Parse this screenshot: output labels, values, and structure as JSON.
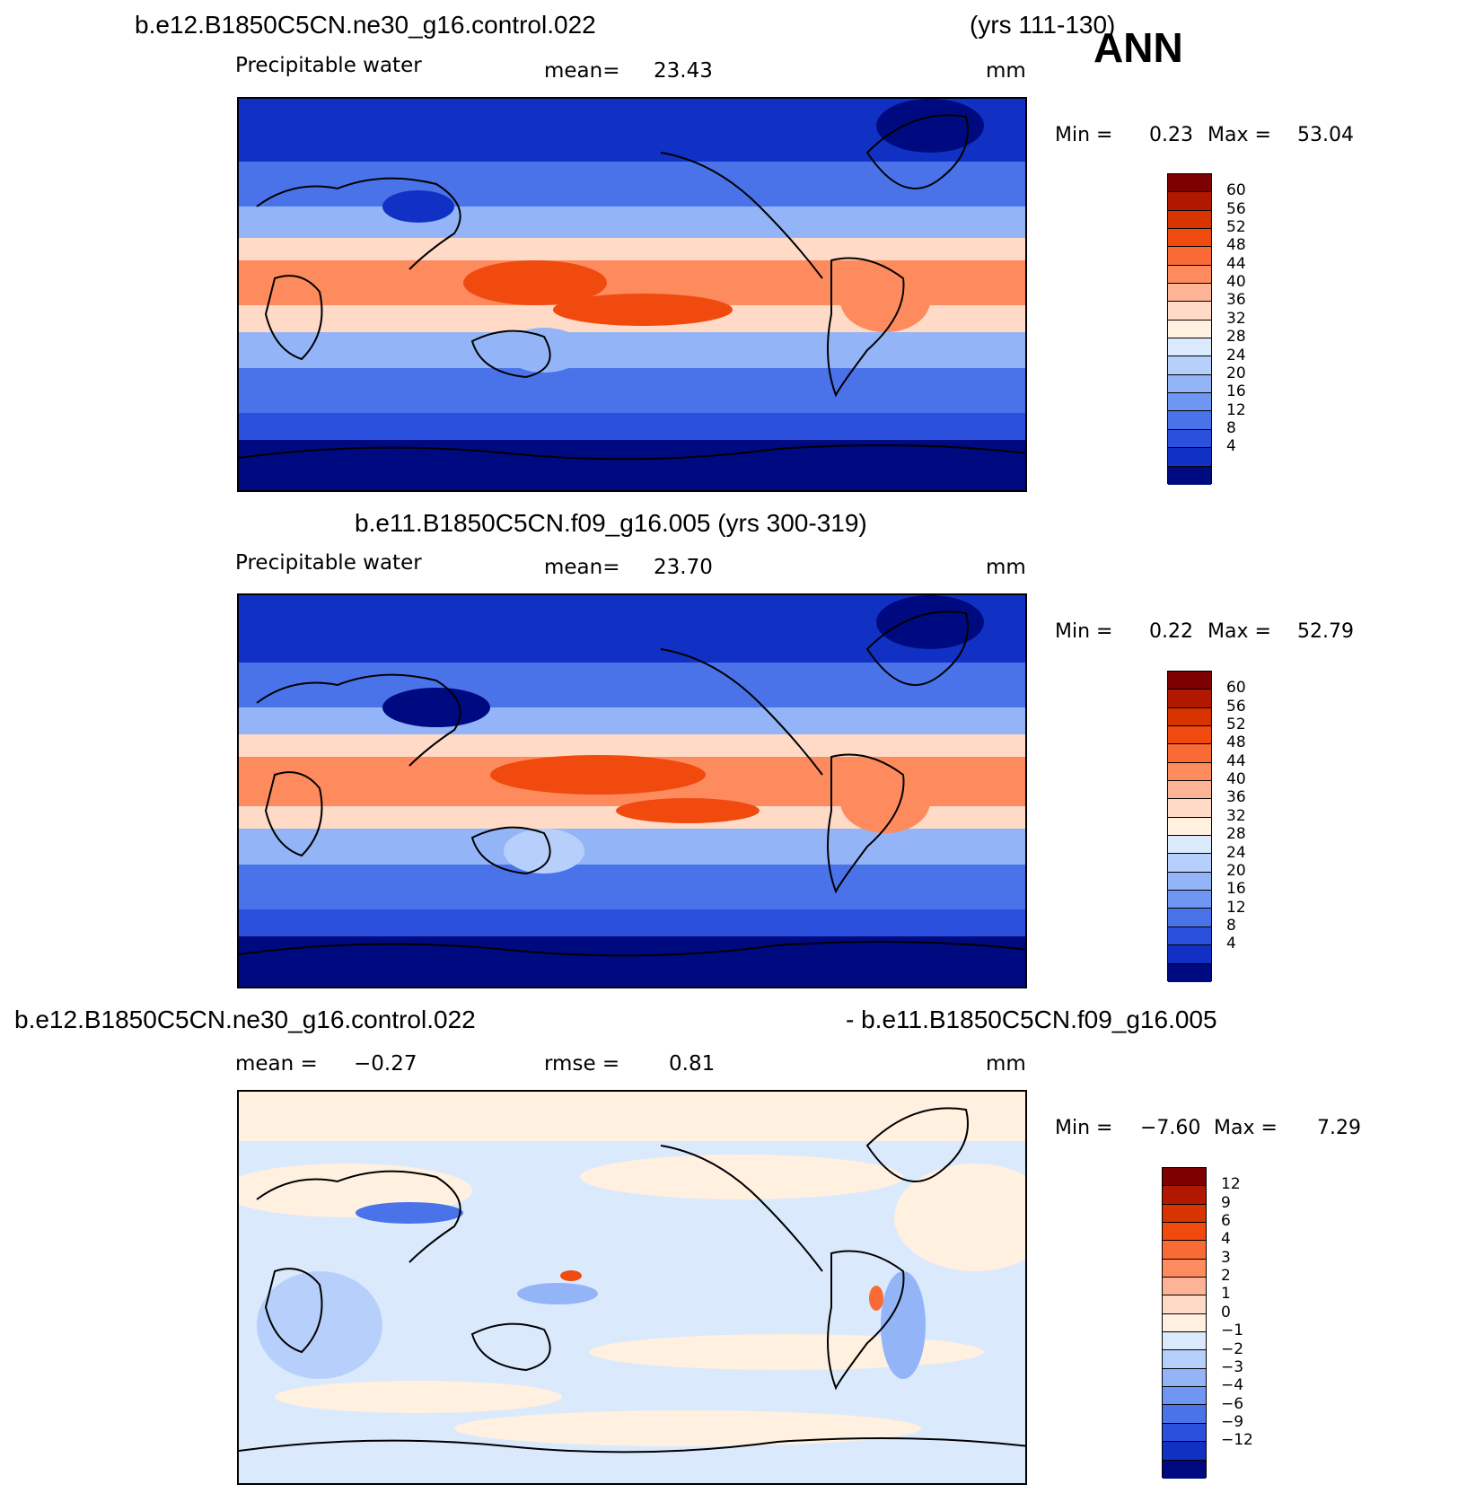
{
  "header": {
    "case_title": "b.e12.B1850C5CN.ne30_g16.control.022",
    "years": "(yrs 111-130)",
    "season": "ANN"
  },
  "panels": [
    {
      "title": "",
      "variable": "Precipitable water",
      "stat_label": "mean=",
      "stat_value": "23.43",
      "units": "mm",
      "min_label": "Min =",
      "min_value": "0.23",
      "max_label": "Max =",
      "max_value": "53.04"
    },
    {
      "title": "b.e11.B1850C5CN.f09_g16.005 (yrs 300-319)",
      "variable": "Precipitable water",
      "stat_label": "mean=",
      "stat_value": "23.70",
      "units": "mm",
      "min_label": "Min =",
      "min_value": "0.22",
      "max_label": "Max =",
      "max_value": "52.79"
    },
    {
      "title_left": "b.e12.B1850C5CN.ne30_g16.control.022",
      "title_right": "- b.e11.B1850C5CN.f09_g16.005",
      "stat_label": "mean =",
      "stat_value": "−0.27",
      "rmse_label": "rmse =",
      "rmse_value": "0.81",
      "units": "mm",
      "min_label": "Min =",
      "min_value": "−7.60",
      "max_label": "Max =",
      "max_value": "7.29"
    }
  ],
  "colorbars": {
    "field": {
      "ticks": [
        "60",
        "56",
        "52",
        "48",
        "44",
        "40",
        "36",
        "32",
        "28",
        "24",
        "20",
        "16",
        "12",
        "8",
        "4"
      ],
      "colors": [
        "#7f0000",
        "#b21800",
        "#d93300",
        "#f04a0f",
        "#fa6a34",
        "#fd8b5d",
        "#fdb396",
        "#fedac7",
        "#fff0e0",
        "#dbe9fd",
        "#b7d0fb",
        "#93b5f7",
        "#6e96f2",
        "#4a73ea",
        "#2a50dd",
        "#1131c4",
        "#000a80"
      ]
    },
    "diff": {
      "ticks": [
        "12",
        "9",
        "6",
        "4",
        "3",
        "2",
        "1",
        "0",
        "−1",
        "−2",
        "−3",
        "−4",
        "−6",
        "−9",
        "−12"
      ],
      "colors": [
        "#7f0000",
        "#b21800",
        "#d93300",
        "#f04a0f",
        "#fa6a34",
        "#fd8b5d",
        "#fdb396",
        "#fedac7",
        "#fff0e0",
        "#dbe9fd",
        "#b7d0fb",
        "#93b5f7",
        "#6e96f2",
        "#4a73ea",
        "#2a50dd",
        "#1131c4",
        "#000a80"
      ]
    }
  }
}
